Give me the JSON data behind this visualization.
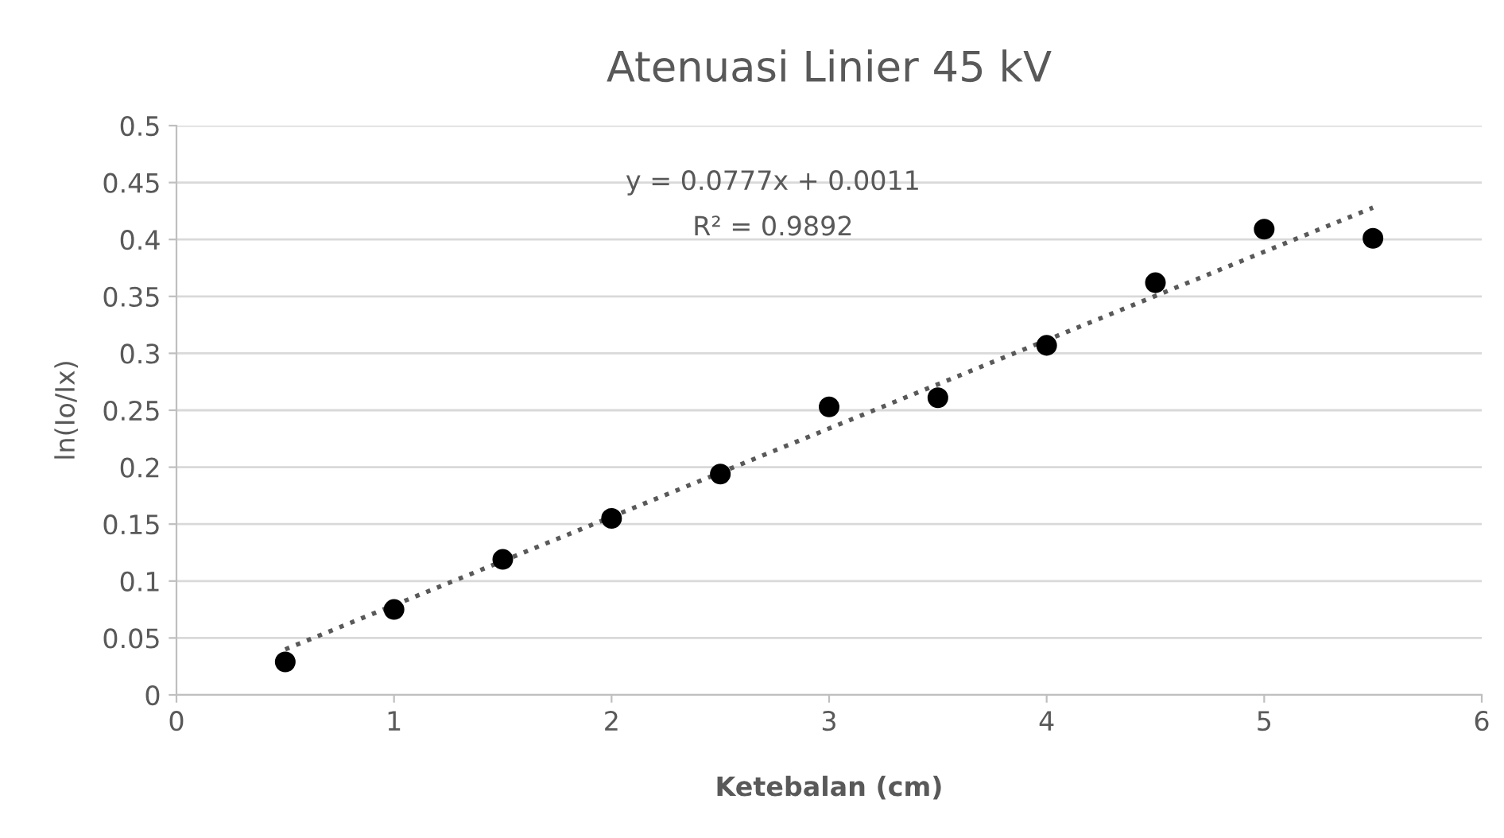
{
  "chart_data": {
    "type": "scatter",
    "title": "Atenuasi Linier 45 kV",
    "xlabel": "Ketebalan (cm)",
    "ylabel": "ln(Io/Ix)",
    "x": [
      0.5,
      1,
      1.5,
      2,
      2.5,
      3,
      3.5,
      4,
      4.5,
      5,
      5.5
    ],
    "series": [
      {
        "color": "#000000",
        "marker": "circle",
        "values": [
          0.029,
          0.075,
          0.119,
          0.155,
          0.194,
          0.253,
          0.261,
          0.307,
          0.362,
          0.409,
          0.401
        ]
      },
      {
        "type": "line",
        "color": "#595959",
        "line_style": "dotted",
        "marker": "none",
        "x": [
          0.5,
          5.5
        ],
        "values": [
          0.04,
          0.428
        ]
      }
    ],
    "annotations": [
      "y = 0.0777x + 0.0011",
      "R² = 0.9892"
    ],
    "xlim": [
      0,
      6
    ],
    "xticks": [
      0,
      1,
      2,
      3,
      4,
      5,
      6
    ],
    "ylim": [
      0,
      0.5
    ],
    "yticks": [
      0,
      0.05,
      0.1,
      0.15,
      0.2,
      0.25,
      0.3,
      0.35,
      0.4,
      0.45,
      0.5
    ],
    "grid": "y",
    "legend": false
  }
}
